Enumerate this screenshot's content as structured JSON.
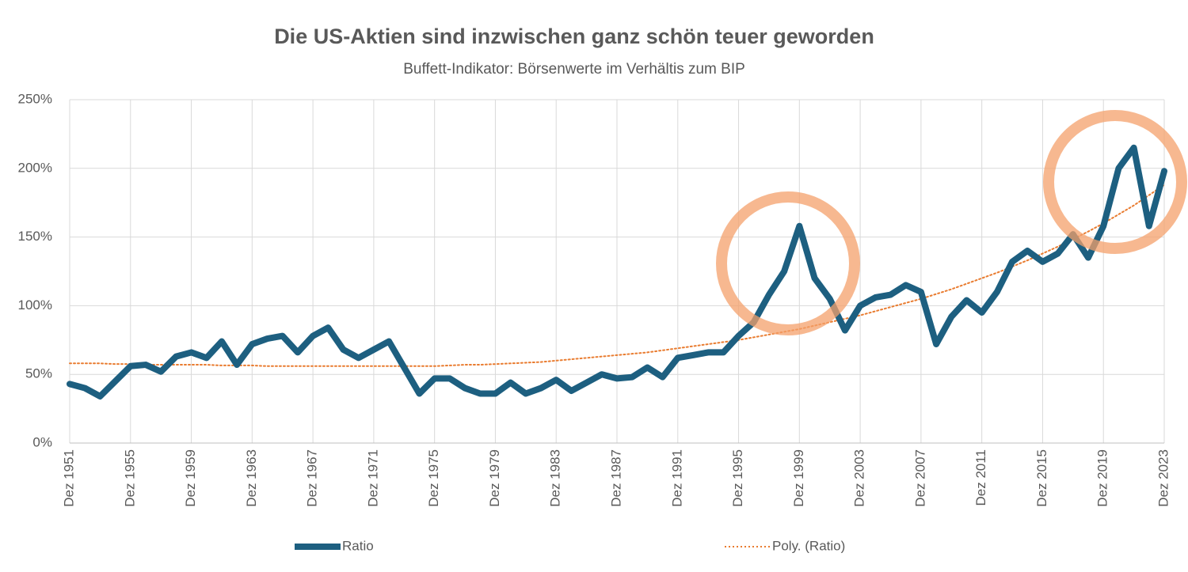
{
  "chart_data": {
    "type": "line",
    "title": "Die US-Aktien sind inzwischen ganz schön teuer geworden",
    "subtitle": "Buffett-Indikator: Börsenwerte im Verhältis zum BIP",
    "categories": [
      "Dez 1951",
      null,
      null,
      null,
      "Dez 1955",
      null,
      null,
      null,
      "Dez 1959",
      null,
      null,
      null,
      "Dez 1963",
      null,
      null,
      null,
      "Dez 1967",
      null,
      null,
      null,
      "Dez 1971",
      null,
      null,
      null,
      "Dez 1975",
      null,
      null,
      null,
      "Dez 1979",
      null,
      null,
      null,
      "Dez 1983",
      null,
      null,
      null,
      "Dez 1987",
      null,
      null,
      null,
      "Dez 1991",
      null,
      null,
      null,
      "Dez 1995",
      null,
      null,
      null,
      "Dez 1999",
      null,
      null,
      null,
      "Dez 2003",
      null,
      null,
      null,
      "Dez 2007",
      null,
      null,
      null,
      "Dez 2011",
      null,
      null,
      null,
      "Dez 2015",
      null,
      null,
      null,
      "Dez 2019",
      null,
      null,
      null,
      "Dez 2023"
    ],
    "series": [
      {
        "name": "Ratio",
        "color": "#1d5f80",
        "values": [
          43,
          40,
          34,
          45,
          56,
          57,
          52,
          63,
          66,
          62,
          74,
          57,
          72,
          76,
          78,
          66,
          78,
          84,
          68,
          62,
          68,
          74,
          55,
          36,
          47,
          47,
          40,
          36,
          36,
          44,
          36,
          40,
          46,
          38,
          44,
          50,
          47,
          48,
          55,
          48,
          62,
          64,
          66,
          66,
          78,
          88,
          108,
          125,
          158,
          120,
          105,
          82,
          100,
          106,
          108,
          115,
          110,
          72,
          92,
          104,
          95,
          110,
          132,
          140,
          132,
          138,
          152,
          135,
          158,
          200,
          215,
          158,
          198
        ]
      },
      {
        "name": "Poly. (Ratio)",
        "color": "#e97c30",
        "values": [
          58,
          58,
          58,
          57.5,
          57.5,
          57,
          57,
          57,
          57,
          57,
          56.5,
          56.5,
          56.5,
          56,
          56,
          56,
          56,
          56,
          56,
          56,
          56,
          56,
          56,
          56,
          56,
          56.5,
          57,
          57,
          57.5,
          58,
          58.5,
          59,
          60,
          61,
          62,
          63,
          64,
          65,
          66,
          67.5,
          69,
          70.5,
          72,
          73.5,
          75,
          77,
          79,
          81,
          83,
          85.5,
          88,
          90.5,
          93,
          96,
          99,
          102,
          105,
          108.5,
          112,
          116,
          120,
          124,
          128.5,
          133,
          138,
          143,
          148.5,
          154,
          160,
          166.5,
          173,
          180.5,
          188
        ]
      }
    ],
    "ylim": [
      0,
      250
    ],
    "yticks": [
      {
        "value": 0,
        "label": "0%"
      },
      {
        "value": 50,
        "label": "50%"
      },
      {
        "value": 100,
        "label": "100%"
      },
      {
        "value": 150,
        "label": "150%"
      },
      {
        "value": 200,
        "label": "200%"
      },
      {
        "value": 250,
        "label": "250%"
      }
    ],
    "grid": true
  }
}
